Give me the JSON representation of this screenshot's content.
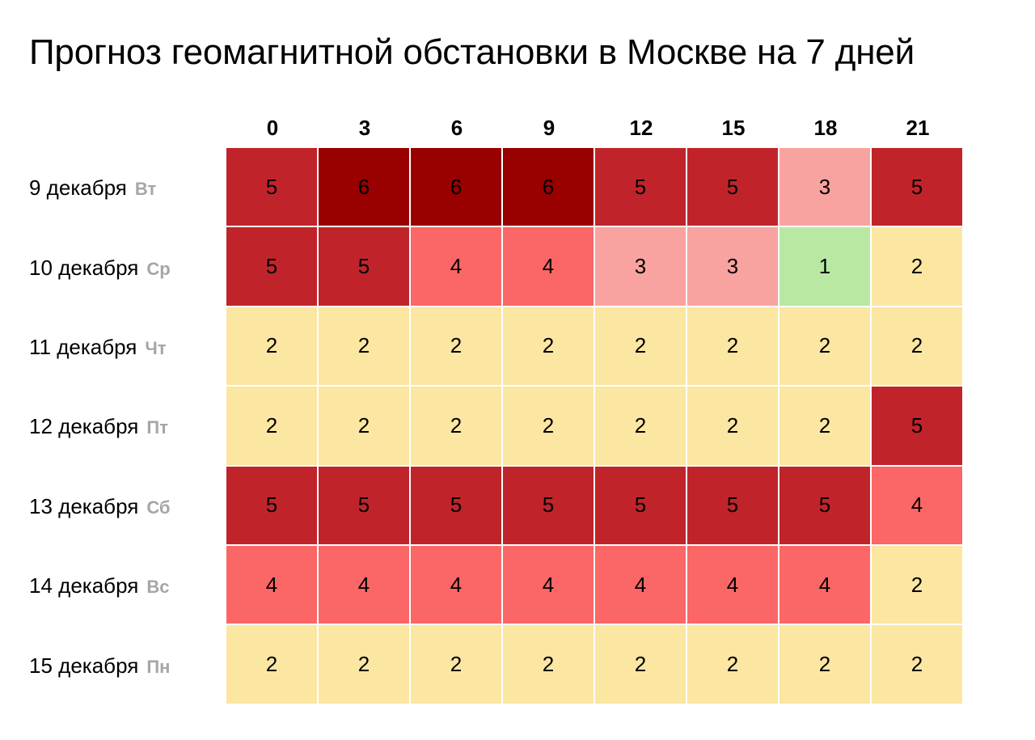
{
  "title": "Прогноз геомагнитной обстановки в Москве на 7 дней",
  "chart_data": {
    "type": "heatmap",
    "title": "Прогноз геомагнитной обстановки в Москве на 7 дней",
    "columns": [
      "0",
      "3",
      "6",
      "9",
      "12",
      "15",
      "18",
      "21"
    ],
    "rows": [
      {
        "date": "9 декабря",
        "day": "Вт"
      },
      {
        "date": "10 декабря",
        "day": "Ср"
      },
      {
        "date": "11 декабря",
        "day": "Чт"
      },
      {
        "date": "12 декабря",
        "day": "Пт"
      },
      {
        "date": "13 декабря",
        "day": "Сб"
      },
      {
        "date": "14 декабря",
        "day": "Вс"
      },
      {
        "date": "15 декабря",
        "day": "Пн"
      }
    ],
    "values": [
      [
        5,
        6,
        6,
        6,
        5,
        5,
        3,
        5
      ],
      [
        5,
        5,
        4,
        4,
        3,
        3,
        1,
        2
      ],
      [
        2,
        2,
        2,
        2,
        2,
        2,
        2,
        2
      ],
      [
        2,
        2,
        2,
        2,
        2,
        2,
        2,
        5
      ],
      [
        5,
        5,
        5,
        5,
        5,
        5,
        5,
        4
      ],
      [
        4,
        4,
        4,
        4,
        4,
        4,
        4,
        2
      ],
      [
        2,
        2,
        2,
        2,
        2,
        2,
        2,
        2
      ]
    ],
    "color_scale": {
      "1": "#b9e8a3",
      "2": "#fbe6a2",
      "3": "#f9a3a1",
      "4": "#fb6666",
      "5": "#c0242a",
      "6": "#990000"
    },
    "cell_text_color": "#000000",
    "day_label_color": "#a6a6a6",
    "legend": "none",
    "grid": true
  }
}
